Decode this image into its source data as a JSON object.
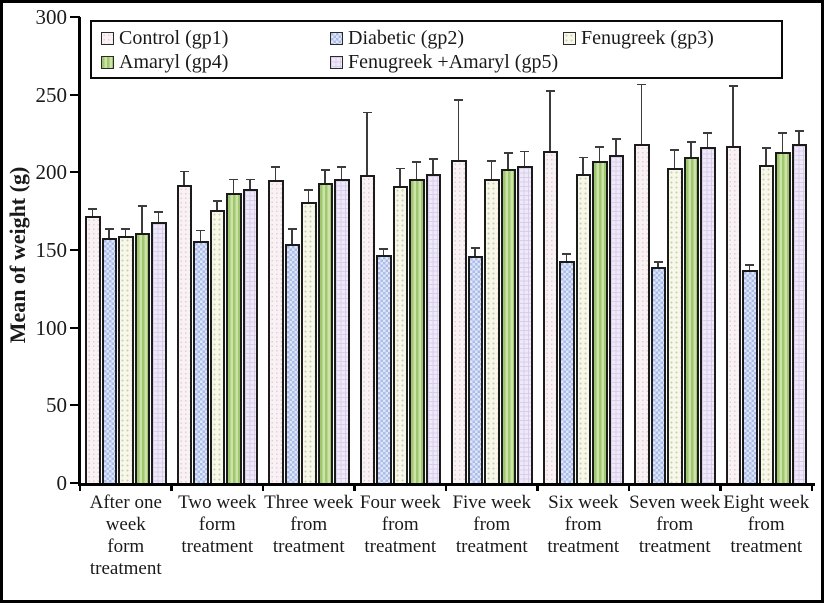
{
  "chart_data": {
    "type": "bar",
    "title": "",
    "ylabel": "Mean of weight (g)",
    "xlabel": "",
    "ylim": [
      0,
      300
    ],
    "yticks": [
      0,
      50,
      100,
      150,
      200,
      250,
      300
    ],
    "grid": false,
    "legend_position": "top-inside-boxed",
    "error_bars": "upper-whisker",
    "axis_color": "#000000",
    "bar_border_color": "#1b1b1b",
    "error_bar_color": "#3c3c3c",
    "categories": [
      "After one week form treatment",
      "Two week form treatment",
      "Three week from treatment",
      "Four week from treatment",
      "Five week from treatment",
      "Six week from treatment",
      "Seven week from treatment",
      "Eight week from treatment"
    ],
    "category_lines": [
      [
        "After one",
        "week",
        "form",
        "treatment"
      ],
      [
        "Two week",
        "form",
        "treatment"
      ],
      [
        "Three week",
        "from",
        "treatment"
      ],
      [
        "Four week",
        "from",
        "treatment"
      ],
      [
        "Five week",
        "from",
        "treatment"
      ],
      [
        "Six week",
        "from",
        "treatment"
      ],
      [
        "Seven week",
        "from",
        "treatment"
      ],
      [
        "Eight week",
        "from",
        "treatment"
      ]
    ],
    "series": [
      {
        "name": "Control (gp1)",
        "key": "control",
        "fill": "#f9f2f4",
        "pattern": "pink-dots",
        "values": [
          172,
          192,
          195,
          198,
          208,
          214,
          218,
          217
        ],
        "errors_plus": [
          5,
          9,
          9,
          41,
          39,
          39,
          39,
          39
        ]
      },
      {
        "name": "Diabetic (gp2)",
        "key": "diabetic",
        "fill": "#aabce9",
        "pattern": "blue-checker",
        "values": [
          158,
          156,
          154,
          147,
          146,
          143,
          139,
          137
        ],
        "errors_plus": [
          6,
          7,
          10,
          4,
          6,
          5,
          4,
          4
        ]
      },
      {
        "name": "Fenugreek (gp3)",
        "key": "fenugreek",
        "fill": "#f7f7ea",
        "pattern": "olive-dots",
        "values": [
          159,
          176,
          181,
          191,
          196,
          199,
          203,
          205
        ],
        "errors_plus": [
          5,
          6,
          8,
          12,
          12,
          11,
          12,
          11
        ]
      },
      {
        "name": "Amaryl (gp4)",
        "key": "amaryl",
        "fill": "#b3d485",
        "pattern": "green-vertical-stripes",
        "values": [
          161,
          187,
          193,
          196,
          202,
          207,
          210,
          213
        ],
        "errors_plus": [
          18,
          9,
          9,
          11,
          11,
          10,
          10,
          13
        ]
      },
      {
        "name": "Fenugreek +Amaryl (gp5)",
        "key": "gp5",
        "fill": "#f0eaf8",
        "pattern": "lavender-grid",
        "values": [
          168,
          189,
          196,
          199,
          204,
          211,
          216,
          218
        ],
        "errors_plus": [
          7,
          7,
          8,
          10,
          10,
          11,
          10,
          9
        ]
      }
    ]
  }
}
